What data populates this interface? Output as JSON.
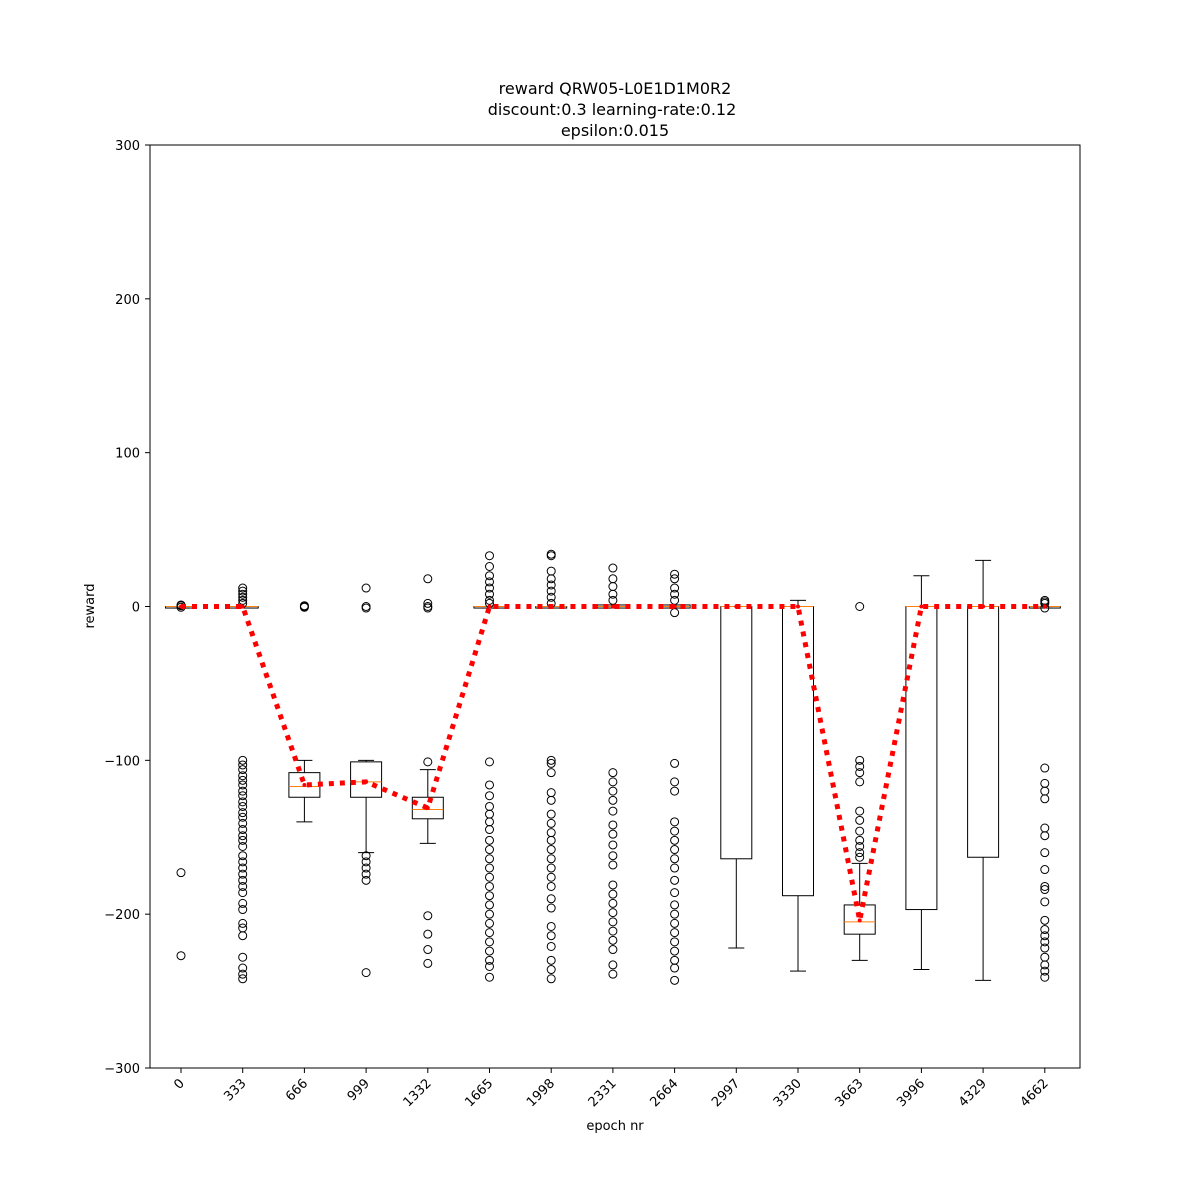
{
  "chart_data": {
    "type": "box",
    "title_lines": [
      "reward QRW05-L0E1D1M0R2",
      "discount:0.3 learning-rate:0.12",
      "epsilon:0.015"
    ],
    "xlabel": "epoch nr",
    "ylabel": "reward",
    "ylim": [
      -300,
      300
    ],
    "yticks": [
      -300,
      -200,
      -100,
      0,
      100,
      200,
      300
    ],
    "grid": false,
    "categories": [
      "0",
      "333",
      "666",
      "999",
      "1332",
      "1665",
      "1998",
      "2331",
      "2664",
      "2997",
      "3330",
      "3663",
      "3996",
      "4329",
      "4662"
    ],
    "boxes": [
      {
        "q1": -1,
        "median": 0,
        "q3": 0,
        "whisker_low": -1,
        "whisker_high": 0,
        "fliers": [
          -173,
          -227,
          1,
          0.5,
          -0.5
        ]
      },
      {
        "q1": -1,
        "median": 0,
        "q3": 0,
        "whisker_low": -1,
        "whisker_high": 0,
        "fliers": [
          12,
          10,
          8,
          6,
          4,
          2,
          -100,
          -103,
          -106,
          -110,
          -113,
          -116,
          -120,
          -123,
          -127,
          -130,
          -134,
          -137,
          -141,
          -145,
          -149,
          -152,
          -156,
          -162,
          -166,
          -170,
          -174,
          -178,
          -182,
          -186,
          -193,
          -197,
          -206,
          -209,
          -214,
          -228,
          -235,
          -239,
          -242
        ]
      },
      {
        "q1": -124,
        "median": -117,
        "q3": -108,
        "whisker_low": -140,
        "whisker_high": -100,
        "fliers": [
          0,
          0.5,
          -0.5
        ]
      },
      {
        "q1": -124,
        "median": -114,
        "q3": -101,
        "whisker_low": -160,
        "whisker_high": -100,
        "fliers": [
          12,
          0,
          -1,
          -162,
          -166,
          -170,
          -174,
          -178,
          -238
        ]
      },
      {
        "q1": -138,
        "median": -132,
        "q3": -124,
        "whisker_low": -154,
        "whisker_high": -106,
        "fliers": [
          18,
          2,
          0,
          -1,
          -101,
          -201,
          -213,
          -223,
          -232
        ]
      },
      {
        "q1": -1,
        "median": 0,
        "q3": 0,
        "whisker_low": -1,
        "whisker_high": 0,
        "fliers": [
          33,
          26,
          20,
          16,
          12,
          8,
          4,
          2,
          -101,
          -116,
          -123,
          -130,
          -135,
          -140,
          -145,
          -152,
          -158,
          -164,
          -170,
          -176,
          -182,
          -188,
          -194,
          -200,
          -206,
          -212,
          -218,
          -224,
          -230,
          -234,
          -241
        ]
      },
      {
        "q1": -1,
        "median": 0,
        "q3": 0,
        "whisker_low": -1,
        "whisker_high": 0,
        "fliers": [
          34,
          33,
          23,
          18,
          14,
          10,
          6,
          2,
          -100,
          -102,
          -108,
          -121,
          -126,
          -135,
          -141,
          -147,
          -152,
          -158,
          -164,
          -170,
          -176,
          -182,
          -190,
          -196,
          -208,
          -214,
          -221,
          -230,
          -236,
          -242
        ]
      },
      {
        "q1": -1,
        "median": 0,
        "q3": 1,
        "whisker_low": -1,
        "whisker_high": 1,
        "fliers": [
          25,
          18,
          13,
          8,
          4,
          -108,
          -114,
          -120,
          -126,
          -133,
          -142,
          -148,
          -155,
          -162,
          -168,
          -181,
          -187,
          -193,
          -199,
          -205,
          -211,
          -217,
          -223,
          -233,
          -239
        ]
      },
      {
        "q1": -1,
        "median": 0,
        "q3": 1,
        "whisker_low": -1,
        "whisker_high": 1,
        "fliers": [
          21,
          18,
          12,
          8,
          4,
          -4,
          -102,
          -114,
          -120,
          -140,
          -146,
          -152,
          -158,
          -164,
          -170,
          -178,
          -186,
          -194,
          -200,
          -206,
          -212,
          -218,
          -224,
          -230,
          -235,
          -243
        ]
      },
      {
        "q1": -164,
        "median": 0,
        "q3": 0,
        "whisker_low": -222,
        "whisker_high": 0,
        "fliers": []
      },
      {
        "q1": -188,
        "median": 0,
        "q3": 0,
        "whisker_low": -237,
        "whisker_high": 4,
        "fliers": []
      },
      {
        "q1": -213,
        "median": -205,
        "q3": -194,
        "whisker_low": -230,
        "whisker_high": -167,
        "fliers": [
          0,
          -100,
          -104,
          -108,
          -114,
          -133,
          -139,
          -146,
          -152,
          -156,
          -160,
          -163
        ]
      },
      {
        "q1": -197,
        "median": 0,
        "q3": 0,
        "whisker_low": -236,
        "whisker_high": 20,
        "fliers": []
      },
      {
        "q1": -163,
        "median": 0,
        "q3": 0,
        "whisker_low": -243,
        "whisker_high": 30,
        "fliers": []
      },
      {
        "q1": -1,
        "median": 0,
        "q3": 0,
        "whisker_low": -1,
        "whisker_high": 0,
        "fliers": [
          4,
          3,
          2,
          -1,
          -105,
          -115,
          -120,
          -125,
          -144,
          -149,
          -160,
          -171,
          -182,
          -184,
          -192,
          -204,
          -210,
          -214,
          -218,
          -222,
          -228,
          -233,
          -237,
          -241
        ]
      }
    ],
    "mean_line": {
      "style": "dotted",
      "color": "#ff0000",
      "values": [
        0,
        0,
        -116,
        -114,
        -131,
        0,
        0,
        0,
        0,
        0,
        0,
        -204,
        0,
        0,
        0
      ]
    },
    "colors": {
      "box": "#000000",
      "median": "#ff7f0e",
      "mean_line": "#ff0000"
    }
  }
}
